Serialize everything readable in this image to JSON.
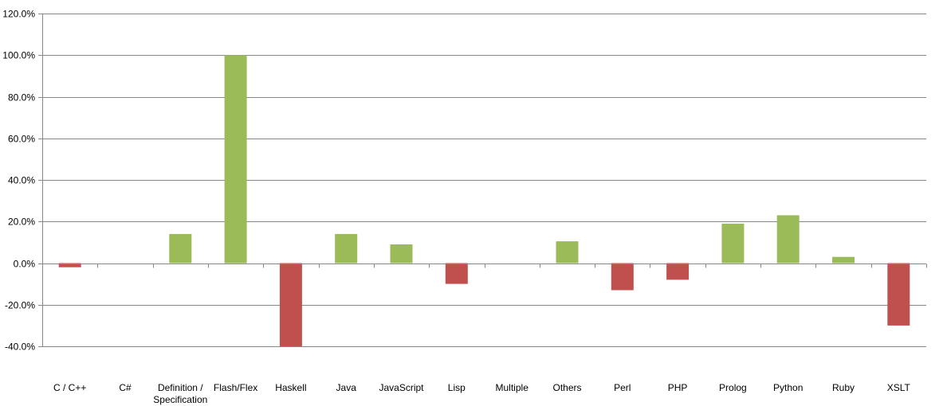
{
  "chart_data": {
    "type": "bar",
    "title": "",
    "xlabel": "",
    "ylabel": "",
    "ylim": [
      -40,
      120
    ],
    "ytick_step": 20,
    "ytick_labels": [
      "-40.0%",
      "-20.0%",
      "0.0%",
      "20.0%",
      "40.0%",
      "60.0%",
      "80.0%",
      "100.0%",
      "120.0%"
    ],
    "grid": true,
    "legend": "none",
    "categories": [
      [
        "C / C++"
      ],
      [
        "C#"
      ],
      [
        "Definition /",
        "Specification"
      ],
      [
        "Flash/Flex"
      ],
      [
        "Haskell"
      ],
      [
        "Java"
      ],
      [
        "JavaScript"
      ],
      [
        "Lisp"
      ],
      [
        "Multiple"
      ],
      [
        "Others"
      ],
      [
        "Perl"
      ],
      [
        "PHP"
      ],
      [
        "Prolog"
      ],
      [
        "Python"
      ],
      [
        "Ruby"
      ],
      [
        "XSLT"
      ]
    ],
    "values": [
      -2,
      0,
      14,
      100,
      -40,
      14,
      9,
      -10,
      0,
      10.5,
      -13,
      -8,
      19,
      23,
      3,
      -30
    ],
    "colors": {
      "positive": "#9bbb59",
      "negative": "#c0504d",
      "grid": "#878787",
      "axis": "#878787"
    }
  }
}
